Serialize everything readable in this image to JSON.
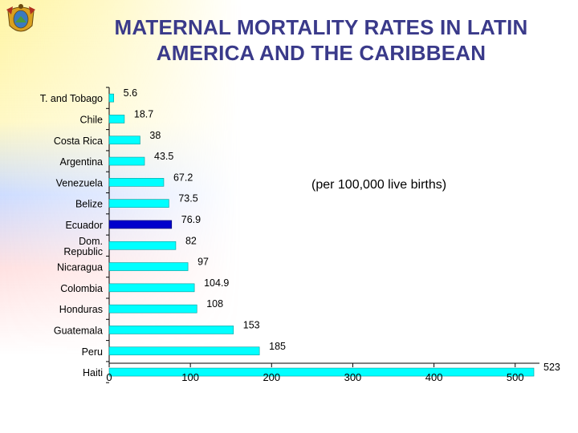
{
  "title_lines": [
    "MATERNAL MORTALITY RATES IN LATIN",
    "AMERICA AND THE CARIBBEAN"
  ],
  "note": "(per 100,000 live births)",
  "colors": {
    "bar": "#00ffff",
    "highlight": "#0000cc",
    "title": "#3a3a8a"
  },
  "icons": {
    "emblem": "coat-of-arms-icon"
  },
  "chart_data": {
    "type": "bar",
    "orientation": "horizontal",
    "categories": [
      "T. and Tobago",
      "Chile",
      "Costa Rica",
      "Argentina",
      "Venezuela",
      "Belize",
      "Ecuador",
      "Dom. Republic",
      "Nicaragua",
      "Colombia",
      "Honduras",
      "Guatemala",
      "Peru",
      "Haiti"
    ],
    "values": [
      5.6,
      18.7,
      38,
      43.5,
      67.2,
      73.5,
      76.9,
      82,
      97,
      104.9,
      108,
      153,
      185,
      523
    ],
    "value_labels": [
      "5.6",
      "18.7",
      "38",
      "43.5",
      "67.2",
      "73.5",
      "76.9",
      "82",
      "97",
      "104.9",
      "108",
      "153",
      "185",
      "523"
    ],
    "highlight": "Ecuador",
    "xlim": [
      0,
      530
    ],
    "xticks": [
      0,
      100,
      200,
      300,
      400,
      500
    ]
  }
}
